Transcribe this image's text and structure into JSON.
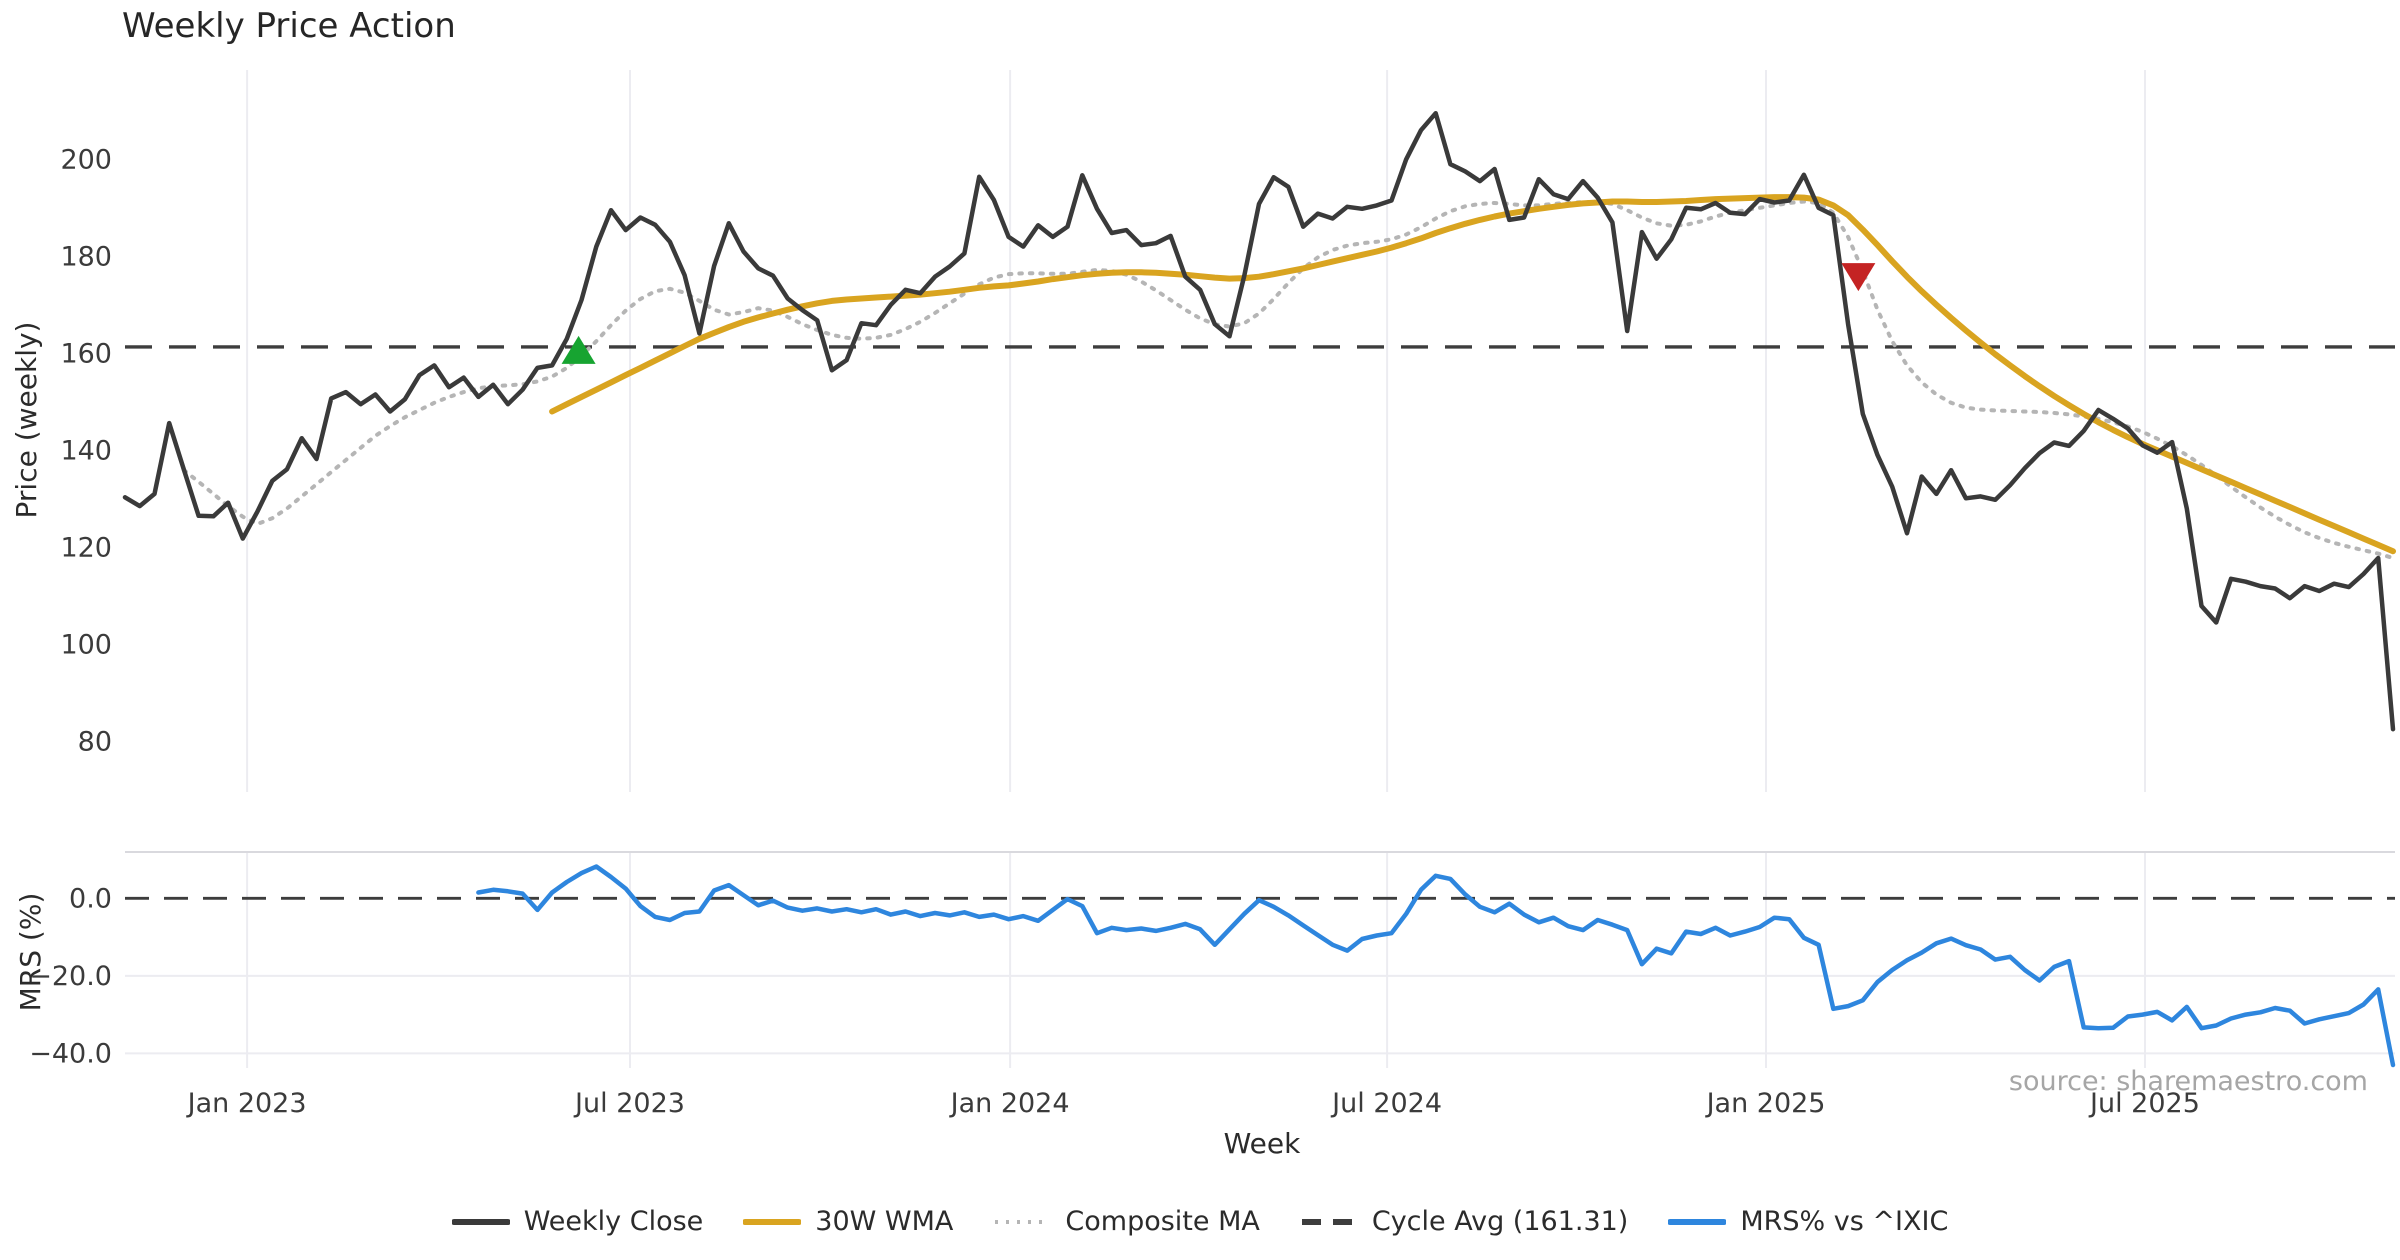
{
  "source_note": "source: sharemaestro.com",
  "x_axis": {
    "label": "Week",
    "ticks": [
      {
        "label": "Jan 2023",
        "week": 8.29
      },
      {
        "label": "Jul 2023",
        "week": 34.29
      },
      {
        "label": "Jan 2024",
        "week": 60.1
      },
      {
        "label": "Jul 2024",
        "week": 85.7
      },
      {
        "label": "Jan 2025",
        "week": 111.43
      },
      {
        "label": "Jul 2025",
        "week": 137.16
      }
    ]
  },
  "legend": {
    "items": [
      {
        "label": "Weekly Close",
        "color": "#3a3a3a",
        "style": "solid"
      },
      {
        "label": "30W WMA",
        "color": "#d9a420",
        "style": "solid"
      },
      {
        "label": "Composite MA",
        "color": "#b5b5b5",
        "style": "dotted"
      },
      {
        "label": "Cycle Avg (161.31)",
        "color": "#3d3d3d",
        "style": "dashed"
      },
      {
        "label": "MRS% vs ^IXIC",
        "color": "#2e86de",
        "style": "solid"
      }
    ]
  },
  "chart_data": [
    {
      "type": "line",
      "panel": "price",
      "title": "Weekly Price Action",
      "ylabel": "Price (weekly)",
      "yticks": [
        80,
        100,
        120,
        140,
        160,
        180,
        200
      ],
      "ylim": [
        76,
        214
      ],
      "cycle_avg": 161.31,
      "grid": "vertical-only",
      "series": [
        {
          "name": "Weekly Close",
          "color": "#3a3a3a",
          "style": "solid",
          "width": 4.5,
          "start_week": 0,
          "values": [
            130.3,
            128.5,
            131.0,
            145.6,
            136.0,
            126.5,
            126.4,
            129.2,
            121.8,
            127.4,
            133.7,
            136.1,
            142.5,
            138.2,
            150.7,
            152.0,
            149.5,
            151.5,
            148.0,
            150.5,
            155.5,
            157.5,
            153.0,
            155.0,
            151.0,
            153.5,
            149.5,
            152.5,
            157.0,
            157.5,
            163.0,
            171.0,
            182.0,
            189.5,
            185.4,
            188.0,
            186.5,
            183.0,
            176.1,
            164.1,
            178.0,
            186.8,
            181.0,
            177.5,
            176.0,
            171.3,
            168.9,
            166.8,
            156.5,
            158.6,
            166.2,
            165.8,
            170.0,
            173.1,
            172.4,
            175.8,
            177.9,
            180.6,
            196.4,
            191.6,
            184.0,
            182.0,
            186.4,
            184.0,
            186.1,
            196.7,
            189.8,
            184.8,
            185.4,
            182.3,
            182.7,
            184.2,
            175.8,
            173.1,
            166.0,
            163.5,
            176.0,
            190.8,
            196.3,
            194.3,
            186.1,
            188.8,
            187.8,
            190.2,
            189.8,
            190.5,
            191.5,
            200.0,
            206.0,
            209.5,
            199.0,
            197.5,
            195.5,
            198.0,
            187.5,
            188.0,
            195.9,
            192.8,
            191.8,
            195.5,
            192.1,
            187.0,
            164.6,
            185.0,
            179.5,
            183.5,
            190.0,
            189.7,
            191.0,
            189.0,
            188.7,
            191.8,
            191.1,
            191.5,
            196.8,
            190.0,
            188.5,
            166.0,
            147.5,
            139.0,
            132.5,
            122.9,
            134.6,
            131.0,
            135.9,
            130.1,
            130.5,
            129.8,
            132.8,
            136.3,
            139.4,
            141.6,
            140.9,
            144.0,
            148.3,
            146.5,
            144.5,
            141.0,
            139.5,
            141.7,
            128.0,
            107.9,
            104.5,
            113.5,
            112.9,
            112.0,
            111.5,
            109.5,
            112.0,
            111.0,
            112.5,
            111.8,
            114.5,
            117.8,
            82.5
          ]
        },
        {
          "name": "30W WMA",
          "color": "#d9a420",
          "style": "solid",
          "width": 6,
          "start_week": 29,
          "values": [
            148.0,
            149.5,
            151.0,
            152.5,
            154.0,
            155.5,
            157.0,
            158.5,
            160.0,
            161.5,
            163.0,
            164.2,
            165.4,
            166.5,
            167.4,
            168.2,
            169.0,
            169.7,
            170.3,
            170.8,
            171.1,
            171.3,
            171.5,
            171.7,
            171.9,
            172.1,
            172.4,
            172.7,
            173.1,
            173.5,
            173.8,
            174.0,
            174.4,
            174.8,
            175.3,
            175.7,
            176.1,
            176.4,
            176.6,
            176.7,
            176.7,
            176.6,
            176.4,
            176.2,
            175.9,
            175.6,
            175.4,
            175.5,
            175.8,
            176.3,
            176.9,
            177.5,
            178.2,
            178.9,
            179.6,
            180.3,
            181.0,
            181.8,
            182.7,
            183.7,
            184.8,
            185.8,
            186.7,
            187.5,
            188.2,
            188.8,
            189.3,
            189.8,
            190.2,
            190.6,
            190.9,
            191.1,
            191.3,
            191.3,
            191.2,
            191.2,
            191.3,
            191.4,
            191.6,
            191.8,
            191.9,
            192.0,
            192.1,
            192.2,
            192.2,
            192.1,
            191.7,
            190.5,
            188.5,
            185.5,
            182.3,
            179.0,
            175.8,
            172.8,
            170.0,
            167.3,
            164.7,
            162.2,
            159.8,
            157.5,
            155.3,
            153.2,
            151.2,
            149.3,
            147.5,
            145.8,
            144.2,
            142.7,
            141.3,
            140.0,
            138.7,
            137.4,
            136.1,
            134.8,
            133.5,
            132.2,
            130.9,
            129.6,
            128.3,
            127.0,
            125.7,
            124.4,
            123.1,
            121.8,
            120.5,
            119.2
          ]
        },
        {
          "name": "Composite MA",
          "color": "#b5b5b5",
          "style": "dotted",
          "width": 4,
          "start_week": 4,
          "values": [
            135.9,
            133.5,
            131.0,
            128.5,
            126.3,
            124.8,
            126.0,
            128.0,
            130.5,
            133.0,
            135.5,
            138.0,
            140.5,
            143.0,
            145.0,
            146.8,
            148.3,
            149.8,
            151.0,
            152.0,
            152.8,
            153.2,
            153.4,
            153.6,
            154.2,
            155.2,
            157.0,
            159.5,
            162.5,
            165.8,
            168.8,
            171.2,
            172.8,
            173.3,
            172.5,
            170.8,
            169.0,
            168.0,
            168.5,
            169.3,
            168.8,
            167.5,
            166.0,
            164.8,
            163.8,
            163.2,
            163.0,
            163.2,
            163.8,
            165.0,
            166.5,
            168.3,
            170.3,
            172.3,
            174.2,
            175.6,
            176.3,
            176.5,
            176.5,
            176.4,
            176.4,
            176.8,
            177.2,
            177.0,
            176.2,
            174.8,
            173.0,
            171.0,
            169.0,
            167.2,
            166.0,
            165.5,
            166.2,
            168.2,
            171.2,
            174.5,
            177.5,
            179.8,
            181.3,
            182.2,
            182.7,
            183.0,
            183.5,
            184.5,
            186.0,
            187.8,
            189.3,
            190.3,
            190.8,
            191.0,
            190.8,
            190.5,
            190.5,
            190.8,
            191.0,
            191.2,
            191.2,
            190.8,
            189.5,
            188.0,
            186.8,
            186.3,
            186.5,
            187.2,
            188.2,
            189.0,
            189.5,
            190.0,
            190.5,
            191.0,
            191.3,
            191.0,
            189.0,
            184.0,
            177.0,
            169.0,
            162.5,
            157.5,
            154.0,
            151.5,
            149.8,
            148.8,
            148.4,
            148.2,
            148.1,
            148.0,
            147.9,
            147.7,
            147.4,
            147.0,
            146.5,
            145.8,
            144.9,
            143.8,
            142.4,
            140.8,
            139.0,
            137.0,
            134.8,
            132.5,
            130.3,
            128.2,
            126.3,
            124.6,
            123.1,
            121.9,
            120.9,
            120.1,
            119.4,
            118.7,
            117.8
          ]
        }
      ],
      "markers": [
        {
          "name": "buy-signal-marker",
          "shape": "triangle-up",
          "color": "#17a431",
          "week": 30.8,
          "price": 160.7
        },
        {
          "name": "sell-signal-marker",
          "shape": "triangle-down",
          "color": "#c42323",
          "week": 117.7,
          "price": 175.7
        }
      ]
    },
    {
      "type": "line",
      "panel": "mrs",
      "ylabel": "MRS (%)",
      "yticks": [
        0,
        -20,
        -40
      ],
      "ytick_labels": [
        "0.0",
        "−20.0",
        "−40.0"
      ],
      "zero_line": 0,
      "grid": "both",
      "series": [
        {
          "name": "MRS% vs ^IXIC",
          "color": "#2e86de",
          "style": "solid",
          "width": 4.5,
          "start_week": 24,
          "values": [
            1.5,
            2.2,
            1.8,
            1.2,
            -3.0,
            1.5,
            4.2,
            6.5,
            8.2,
            5.5,
            2.5,
            -2.0,
            -4.8,
            -5.6,
            -3.8,
            -3.4,
            2.0,
            3.4,
            0.8,
            -1.8,
            -0.6,
            -2.4,
            -3.2,
            -2.6,
            -3.4,
            -2.8,
            -3.6,
            -2.8,
            -4.2,
            -3.4,
            -4.6,
            -3.8,
            -4.4,
            -3.6,
            -4.8,
            -4.2,
            -5.4,
            -4.6,
            -5.8,
            -3.0,
            -0.2,
            -2.0,
            -9.0,
            -7.6,
            -8.2,
            -7.8,
            -8.4,
            -7.6,
            -6.6,
            -8.0,
            -12.0,
            -8.0,
            -4.0,
            -0.5,
            -2.2,
            -4.4,
            -7.0,
            -9.5,
            -12.0,
            -13.5,
            -10.5,
            -9.6,
            -9.0,
            -4.0,
            2.2,
            5.8,
            5.0,
            1.0,
            -2.2,
            -3.6,
            -1.4,
            -4.2,
            -6.2,
            -5.0,
            -7.2,
            -8.2,
            -5.6,
            -6.8,
            -8.2,
            -17.0,
            -13.0,
            -14.2,
            -8.6,
            -9.2,
            -7.6,
            -9.6,
            -8.6,
            -7.4,
            -5.0,
            -5.4,
            -10.2,
            -12.0,
            -28.5,
            -27.8,
            -26.3,
            -21.6,
            -18.5,
            -16.0,
            -14.0,
            -11.6,
            -10.4,
            -12.1,
            -13.2,
            -15.8,
            -15.1,
            -18.5,
            -21.2,
            -17.7,
            -16.2,
            -33.3,
            -33.5,
            -33.4,
            -30.5,
            -30.0,
            -29.3,
            -31.5,
            -28.0,
            -33.5,
            -32.8,
            -31.0,
            -30.0,
            -29.4,
            -28.3,
            -29.0,
            -32.3,
            -31.2,
            -30.4,
            -29.6,
            -27.4,
            -23.5,
            -43.0
          ]
        }
      ]
    }
  ]
}
